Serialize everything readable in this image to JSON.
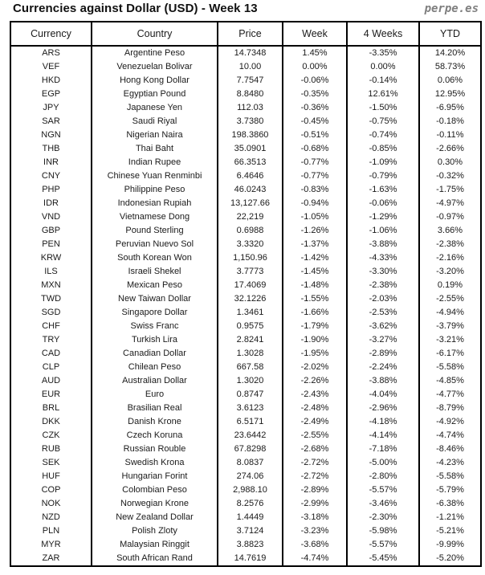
{
  "header": {
    "title": "Currencies against Dollar (USD) - Week 13",
    "brand": "perpe.es"
  },
  "colors": {
    "positive": "#00a36c",
    "negative": "#ff1a1a",
    "border": "#000000",
    "brand_gray": "#7f7f7f"
  },
  "chart_data": {
    "type": "table",
    "title": "Currencies against Dollar (USD) - Week 13",
    "columns": [
      "Currency",
      "Country",
      "Price",
      "Week",
      "4 Weeks",
      "YTD"
    ],
    "rows": [
      [
        "ARS",
        "Argentine Peso",
        "14.7348",
        "1.45%",
        "-3.35%",
        "14.20%"
      ],
      [
        "VEF",
        "Venezuelan Bolivar",
        "10.00",
        "0.00%",
        "0.00%",
        "58.73%"
      ],
      [
        "HKD",
        "Hong Kong Dollar",
        "7.7547",
        "-0.06%",
        "-0.14%",
        "0.06%"
      ],
      [
        "EGP",
        "Egyptian Pound",
        "8.8480",
        "-0.35%",
        "12.61%",
        "12.95%"
      ],
      [
        "JPY",
        "Japanese Yen",
        "112.03",
        "-0.36%",
        "-1.50%",
        "-6.95%"
      ],
      [
        "SAR",
        "Saudi Riyal",
        "3.7380",
        "-0.45%",
        "-0.75%",
        "-0.18%"
      ],
      [
        "NGN",
        "Nigerian Naira",
        "198.3860",
        "-0.51%",
        "-0.74%",
        "-0.11%"
      ],
      [
        "THB",
        "Thai Baht",
        "35.0901",
        "-0.68%",
        "-0.85%",
        "-2.66%"
      ],
      [
        "INR",
        "Indian Rupee",
        "66.3513",
        "-0.77%",
        "-1.09%",
        "0.30%"
      ],
      [
        "CNY",
        "Chinese Yuan Renminbi",
        "6.4646",
        "-0.77%",
        "-0.79%",
        "-0.32%"
      ],
      [
        "PHP",
        "Philippine Peso",
        "46.0243",
        "-0.83%",
        "-1.63%",
        "-1.75%"
      ],
      [
        "IDR",
        "Indonesian Rupiah",
        "13,127.66",
        "-0.94%",
        "-0.06%",
        "-4.97%"
      ],
      [
        "VND",
        "Vietnamese Dong",
        "22,219",
        "-1.05%",
        "-1.29%",
        "-0.97%"
      ],
      [
        "GBP",
        "Pound Sterling",
        "0.6988",
        "-1.26%",
        "-1.06%",
        "3.66%"
      ],
      [
        "PEN",
        "Peruvian Nuevo Sol",
        "3.3320",
        "-1.37%",
        "-3.88%",
        "-2.38%"
      ],
      [
        "KRW",
        "South Korean Won",
        "1,150.96",
        "-1.42%",
        "-4.33%",
        "-2.16%"
      ],
      [
        "ILS",
        "Israeli Shekel",
        "3.7773",
        "-1.45%",
        "-3.30%",
        "-3.20%"
      ],
      [
        "MXN",
        "Mexican Peso",
        "17.4069",
        "-1.48%",
        "-2.38%",
        "0.19%"
      ],
      [
        "TWD",
        "New Taiwan Dollar",
        "32.1226",
        "-1.55%",
        "-2.03%",
        "-2.55%"
      ],
      [
        "SGD",
        "Singapore Dollar",
        "1.3461",
        "-1.66%",
        "-2.53%",
        "-4.94%"
      ],
      [
        "CHF",
        "Swiss Franc",
        "0.9575",
        "-1.79%",
        "-3.62%",
        "-3.79%"
      ],
      [
        "TRY",
        "Turkish Lira",
        "2.8241",
        "-1.90%",
        "-3.27%",
        "-3.21%"
      ],
      [
        "CAD",
        "Canadian Dollar",
        "1.3028",
        "-1.95%",
        "-2.89%",
        "-6.17%"
      ],
      [
        "CLP",
        "Chilean Peso",
        "667.58",
        "-2.02%",
        "-2.24%",
        "-5.58%"
      ],
      [
        "AUD",
        "Australian Dollar",
        "1.3020",
        "-2.26%",
        "-3.88%",
        "-4.85%"
      ],
      [
        "EUR",
        "Euro",
        "0.8747",
        "-2.43%",
        "-4.04%",
        "-4.77%"
      ],
      [
        "BRL",
        "Brasilian Real",
        "3.6123",
        "-2.48%",
        "-2.96%",
        "-8.79%"
      ],
      [
        "DKK",
        "Danish Krone",
        "6.5171",
        "-2.49%",
        "-4.18%",
        "-4.92%"
      ],
      [
        "CZK",
        "Czech Koruna",
        "23.6442",
        "-2.55%",
        "-4.14%",
        "-4.74%"
      ],
      [
        "RUB",
        "Russian Rouble",
        "67.8298",
        "-2.68%",
        "-7.18%",
        "-8.46%"
      ],
      [
        "SEK",
        "Swedish Krona",
        "8.0837",
        "-2.72%",
        "-5.00%",
        "-4.23%"
      ],
      [
        "HUF",
        "Hungarian Forint",
        "274.06",
        "-2.72%",
        "-2.80%",
        "-5.58%"
      ],
      [
        "COP",
        "Colombian Peso",
        "2,988.10",
        "-2.89%",
        "-5.57%",
        "-5.79%"
      ],
      [
        "NOK",
        "Norwegian Krone",
        "8.2576",
        "-2.99%",
        "-3.46%",
        "-6.38%"
      ],
      [
        "NZD",
        "New Zealand Dollar",
        "1.4449",
        "-3.18%",
        "-2.30%",
        "-1.21%"
      ],
      [
        "PLN",
        "Polish Zloty",
        "3.7124",
        "-3.23%",
        "-5.98%",
        "-5.21%"
      ],
      [
        "MYR",
        "Malaysian Ringgit",
        "3.8823",
        "-3.68%",
        "-5.57%",
        "-9.99%"
      ],
      [
        "ZAR",
        "South African Rand",
        "14.7619",
        "-4.74%",
        "-5.45%",
        "-5.20%"
      ]
    ]
  }
}
